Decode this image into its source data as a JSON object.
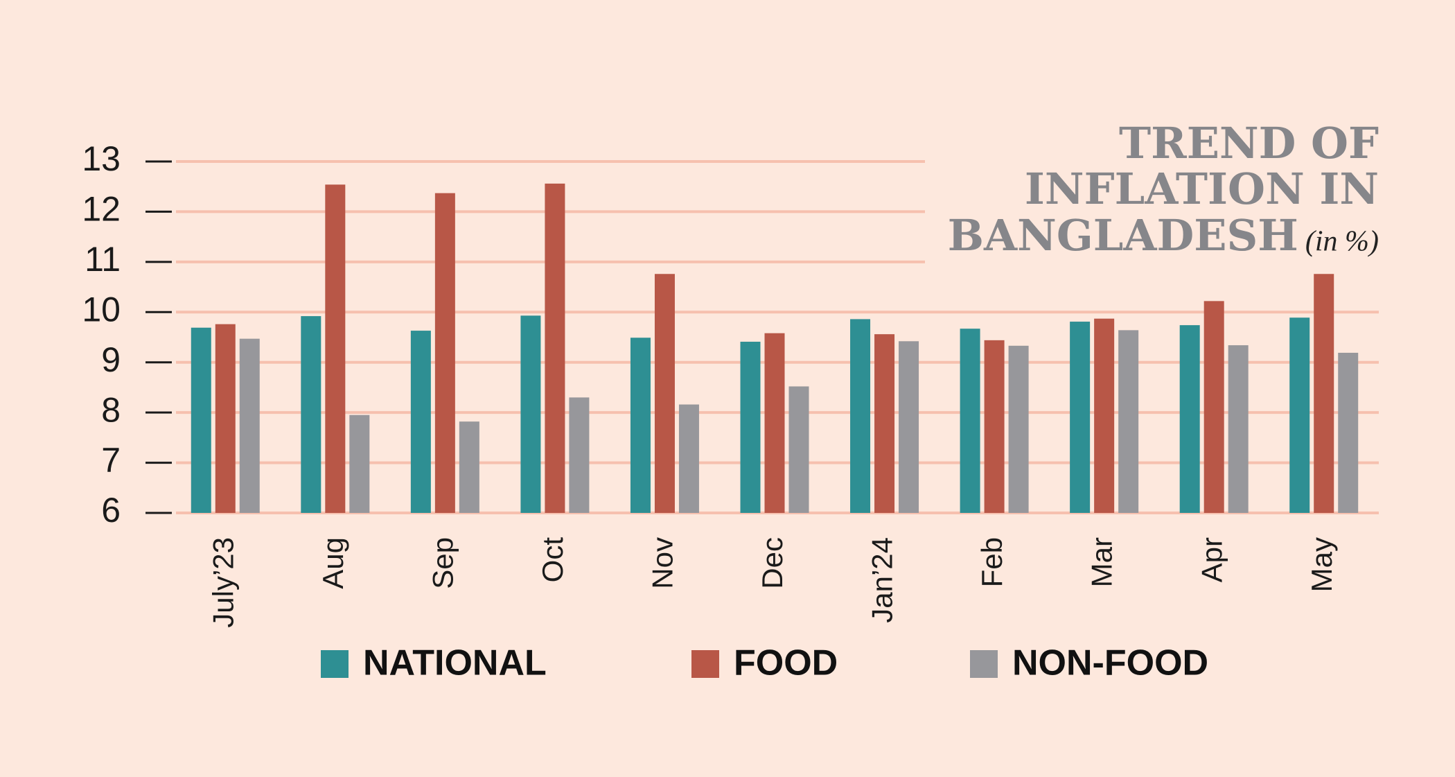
{
  "chart_data": {
    "type": "bar",
    "title": [
      "TREND OF",
      "INFLATION IN",
      "BANGLADESH"
    ],
    "unit": "(in %)",
    "categories": [
      "July’23",
      "Aug",
      "Sep",
      "Oct",
      "Nov",
      "Dec",
      "Jan’24",
      "Feb",
      "Mar",
      "Apr",
      "May"
    ],
    "series": [
      {
        "name": "NATIONAL",
        "color": "#2e8f93",
        "values": [
          9.69,
          9.92,
          9.63,
          9.93,
          9.49,
          9.41,
          9.86,
          9.67,
          9.81,
          9.74,
          9.89
        ]
      },
      {
        "name": "FOOD",
        "color": "#b85747",
        "values": [
          9.76,
          12.54,
          12.37,
          12.56,
          10.76,
          9.58,
          9.56,
          9.44,
          9.87,
          10.22,
          10.76
        ]
      },
      {
        "name": "NON-FOOD",
        "color": "#97979b",
        "values": [
          9.47,
          7.95,
          7.82,
          8.3,
          8.16,
          8.52,
          9.42,
          9.33,
          9.64,
          9.34,
          9.19
        ]
      }
    ],
    "ylim": [
      6,
      13
    ],
    "yticks": [
      6,
      7,
      8,
      9,
      10,
      11,
      12,
      13
    ],
    "grid": true,
    "legend": "bottom"
  }
}
